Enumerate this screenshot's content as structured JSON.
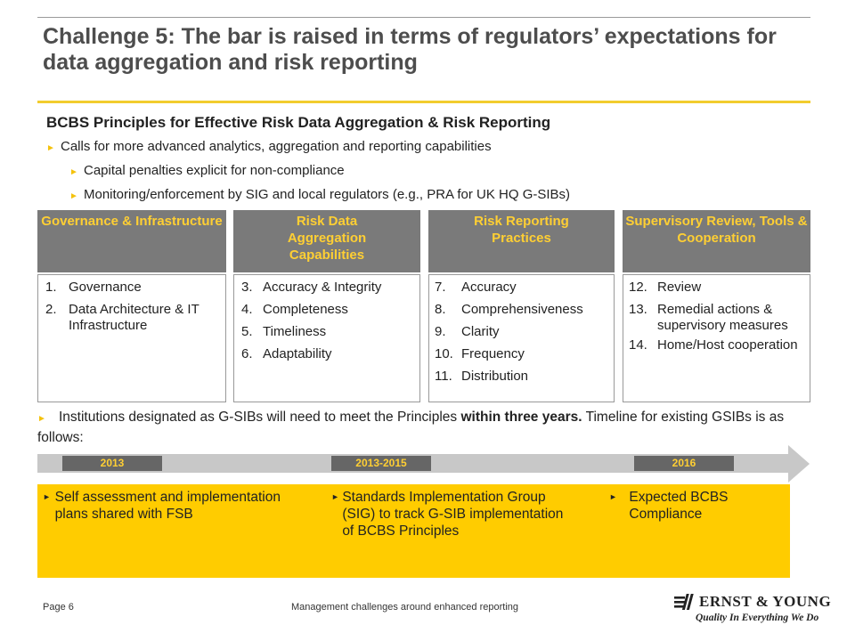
{
  "title": "Challenge 5: The bar is raised in terms of regulators’ expectations for data aggregation and risk reporting",
  "subtitle": "BCBS Principles for Effective Risk Data Aggregation & Risk Reporting",
  "bullets": [
    {
      "text": "Calls for more advanced analytics, aggregation and reporting capabilities"
    },
    {
      "text": "Capital penalties explicit for non-compliance"
    },
    {
      "text": "Monitoring/enforcement by SIG and local regulators (e.g., PRA for UK HQ G-SIBs)"
    }
  ],
  "columns": [
    {
      "header": "Governance & Infrastructure",
      "items": [
        {
          "n": "1.",
          "t": "Governance"
        },
        {
          "n": "2.",
          "t": "Data Architecture & IT Infrastructure"
        }
      ]
    },
    {
      "header": "Risk Data Aggregation Capabilities",
      "items": [
        {
          "n": "3.",
          "t": "Accuracy & Integrity"
        },
        {
          "n": "4.",
          "t": "Completeness"
        },
        {
          "n": "5.",
          "t": "Timeliness"
        },
        {
          "n": "6.",
          "t": "Adaptability"
        }
      ]
    },
    {
      "header": "Risk Reporting Practices",
      "items": [
        {
          "n": "7.",
          "t": "Accuracy"
        },
        {
          "n": "8.",
          "t": "Comprehensiveness"
        },
        {
          "n": "9.",
          "t": "Clarity"
        },
        {
          "n": "10.",
          "t": "Frequency"
        },
        {
          "n": "11.",
          "t": "Distribution"
        }
      ]
    },
    {
      "header": "Supervisory Review, Tools & Cooperation",
      "items": [
        {
          "n": "12.",
          "t": "Review"
        },
        {
          "n": "13.",
          "t": "Remedial actions & supervisory measures"
        },
        {
          "n": "14.",
          "t": "Home/Host cooperation"
        }
      ]
    }
  ],
  "institutions": {
    "pre": "Institutions designated as G-SIBs will need to meet the Principles ",
    "bold": "within three years.",
    "post": " Timeline for existing GSIBs is as follows:"
  },
  "timeline": {
    "labels": [
      "2013",
      "2013-2015",
      "2016"
    ],
    "items": [
      "Self assessment and implementation plans shared with FSB",
      "Standards Implementation Group (SIG) to track G-SIB implementation of BCBS Principles",
      "Expected BCBS Compliance"
    ]
  },
  "footer": {
    "page": "Page 6",
    "center": "Management challenges around enhanced reporting",
    "brand": "ERNST & YOUNG",
    "tagline": "Quality In Everything We Do"
  },
  "colors": {
    "gold": "#ffcc00",
    "header_gray": "#7a7a7a",
    "header_text": "#ffcf33"
  }
}
